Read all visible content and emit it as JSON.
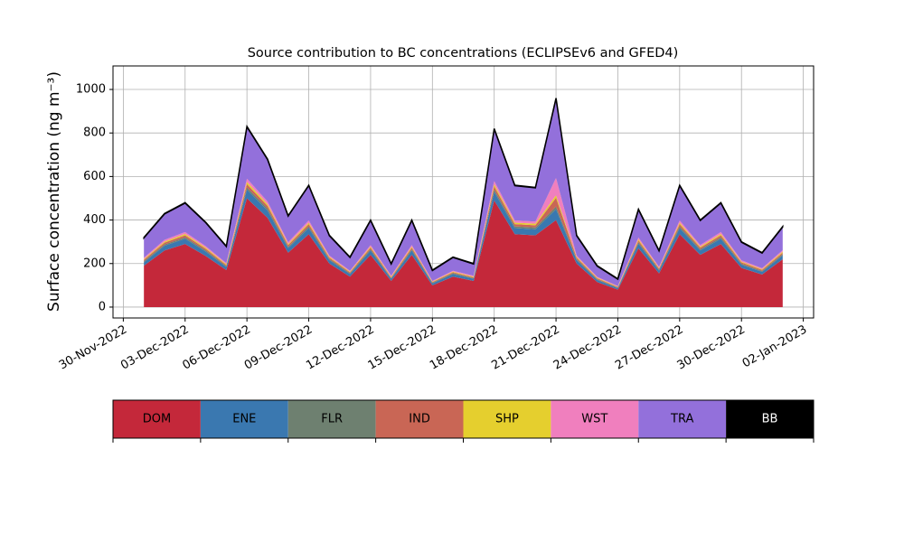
{
  "chart_data": {
    "type": "stacked_area",
    "title": "Source contribution to BC concentrations (ECLIPSEv6 and GFED4)",
    "ylabel": "Surface concentration (ng m⁻³)",
    "x": [
      "2022-12-01",
      "2022-12-02",
      "2022-12-03",
      "2022-12-04",
      "2022-12-05",
      "2022-12-06",
      "2022-12-07",
      "2022-12-08",
      "2022-12-09",
      "2022-12-10",
      "2022-12-11",
      "2022-12-12",
      "2022-12-13",
      "2022-12-14",
      "2022-12-15",
      "2022-12-16",
      "2022-12-17",
      "2022-12-18",
      "2022-12-19",
      "2022-12-20",
      "2022-12-21",
      "2022-12-22",
      "2022-12-23",
      "2022-12-24",
      "2022-12-25",
      "2022-12-26",
      "2022-12-27",
      "2022-12-28",
      "2022-12-29",
      "2022-12-30",
      "2022-12-31",
      "2023-01-01"
    ],
    "series": [
      {
        "name": "DOM",
        "color": "#c4283a",
        "values": [
          190,
          260,
          290,
          235,
          170,
          500,
          410,
          250,
          335,
          200,
          140,
          240,
          120,
          240,
          100,
          140,
          120,
          490,
          335,
          330,
          400,
          200,
          115,
          80,
          270,
          155,
          335,
          240,
          290,
          180,
          150,
          220
        ]
      },
      {
        "name": "ENE",
        "color": "#3a78b0",
        "values": [
          16,
          22,
          24,
          20,
          14,
          40,
          34,
          21,
          28,
          16,
          12,
          20,
          10,
          20,
          9,
          12,
          10,
          40,
          28,
          28,
          50,
          16,
          10,
          7,
          22,
          13,
          28,
          20,
          24,
          15,
          12,
          18
        ]
      },
      {
        "name": "FLR",
        "color": "#6e8070",
        "values": [
          5,
          6,
          7,
          6,
          4,
          10,
          9,
          6,
          8,
          5,
          4,
          6,
          3,
          6,
          3,
          4,
          3,
          10,
          8,
          8,
          12,
          5,
          3,
          2,
          6,
          4,
          8,
          6,
          7,
          4,
          4,
          5
        ]
      },
      {
        "name": "IND",
        "color": "#c96655",
        "values": [
          6,
          8,
          9,
          7,
          5,
          15,
          12,
          8,
          10,
          6,
          4,
          7,
          4,
          7,
          3,
          4,
          4,
          15,
          10,
          10,
          40,
          6,
          4,
          3,
          8,
          5,
          10,
          7,
          9,
          6,
          5,
          7
        ]
      },
      {
        "name": "SHP",
        "color": "#e5cf2e",
        "values": [
          4,
          5,
          6,
          5,
          4,
          10,
          8,
          5,
          7,
          4,
          3,
          5,
          3,
          5,
          2,
          3,
          3,
          10,
          7,
          7,
          12,
          4,
          3,
          2,
          6,
          3,
          7,
          5,
          6,
          4,
          3,
          5
        ]
      },
      {
        "name": "WST",
        "color": "#f07fbe",
        "values": [
          6,
          8,
          9,
          7,
          5,
          15,
          12,
          8,
          10,
          6,
          4,
          7,
          4,
          7,
          3,
          4,
          4,
          15,
          10,
          10,
          80,
          6,
          4,
          3,
          8,
          5,
          10,
          7,
          9,
          6,
          5,
          7
        ]
      },
      {
        "name": "TRA",
        "color": "#9370db",
        "values": [
          91,
          119,
          133,
          108,
          76,
          238,
          193,
          120,
          160,
          91,
          61,
          113,
          54,
          113,
          48,
          61,
          54,
          238,
          160,
          155,
          364,
          91,
          49,
          31,
          128,
          73,
          160,
          113,
          133,
          83,
          69,
          106
        ]
      },
      {
        "name": "BB",
        "color": "#000000",
        "values": [
          2,
          2,
          2,
          2,
          2,
          2,
          2,
          2,
          2,
          2,
          2,
          2,
          2,
          2,
          2,
          2,
          2,
          2,
          2,
          2,
          2,
          2,
          2,
          2,
          2,
          2,
          2,
          2,
          2,
          2,
          2,
          2
        ]
      }
    ],
    "xlim": [
      "2022-11-29T12:00",
      "2023-01-02T12:00"
    ],
    "xticks": [
      {
        "value": "2022-11-30",
        "label": "30-Nov-2022"
      },
      {
        "value": "2022-12-03",
        "label": "03-Dec-2022"
      },
      {
        "value": "2022-12-06",
        "label": "06-Dec-2022"
      },
      {
        "value": "2022-12-09",
        "label": "09-Dec-2022"
      },
      {
        "value": "2022-12-12",
        "label": "12-Dec-2022"
      },
      {
        "value": "2022-12-15",
        "label": "15-Dec-2022"
      },
      {
        "value": "2022-12-18",
        "label": "18-Dec-2022"
      },
      {
        "value": "2022-12-21",
        "label": "21-Dec-2022"
      },
      {
        "value": "2022-12-24",
        "label": "24-Dec-2022"
      },
      {
        "value": "2022-12-27",
        "label": "27-Dec-2022"
      },
      {
        "value": "2022-12-30",
        "label": "30-Dec-2022"
      },
      {
        "value": "2023-01-02",
        "label": "02-Jan-2023"
      }
    ],
    "ylim": [
      -50,
      1108
    ],
    "yticks": [
      0,
      200,
      400,
      600,
      800,
      1000
    ],
    "grid": true
  }
}
